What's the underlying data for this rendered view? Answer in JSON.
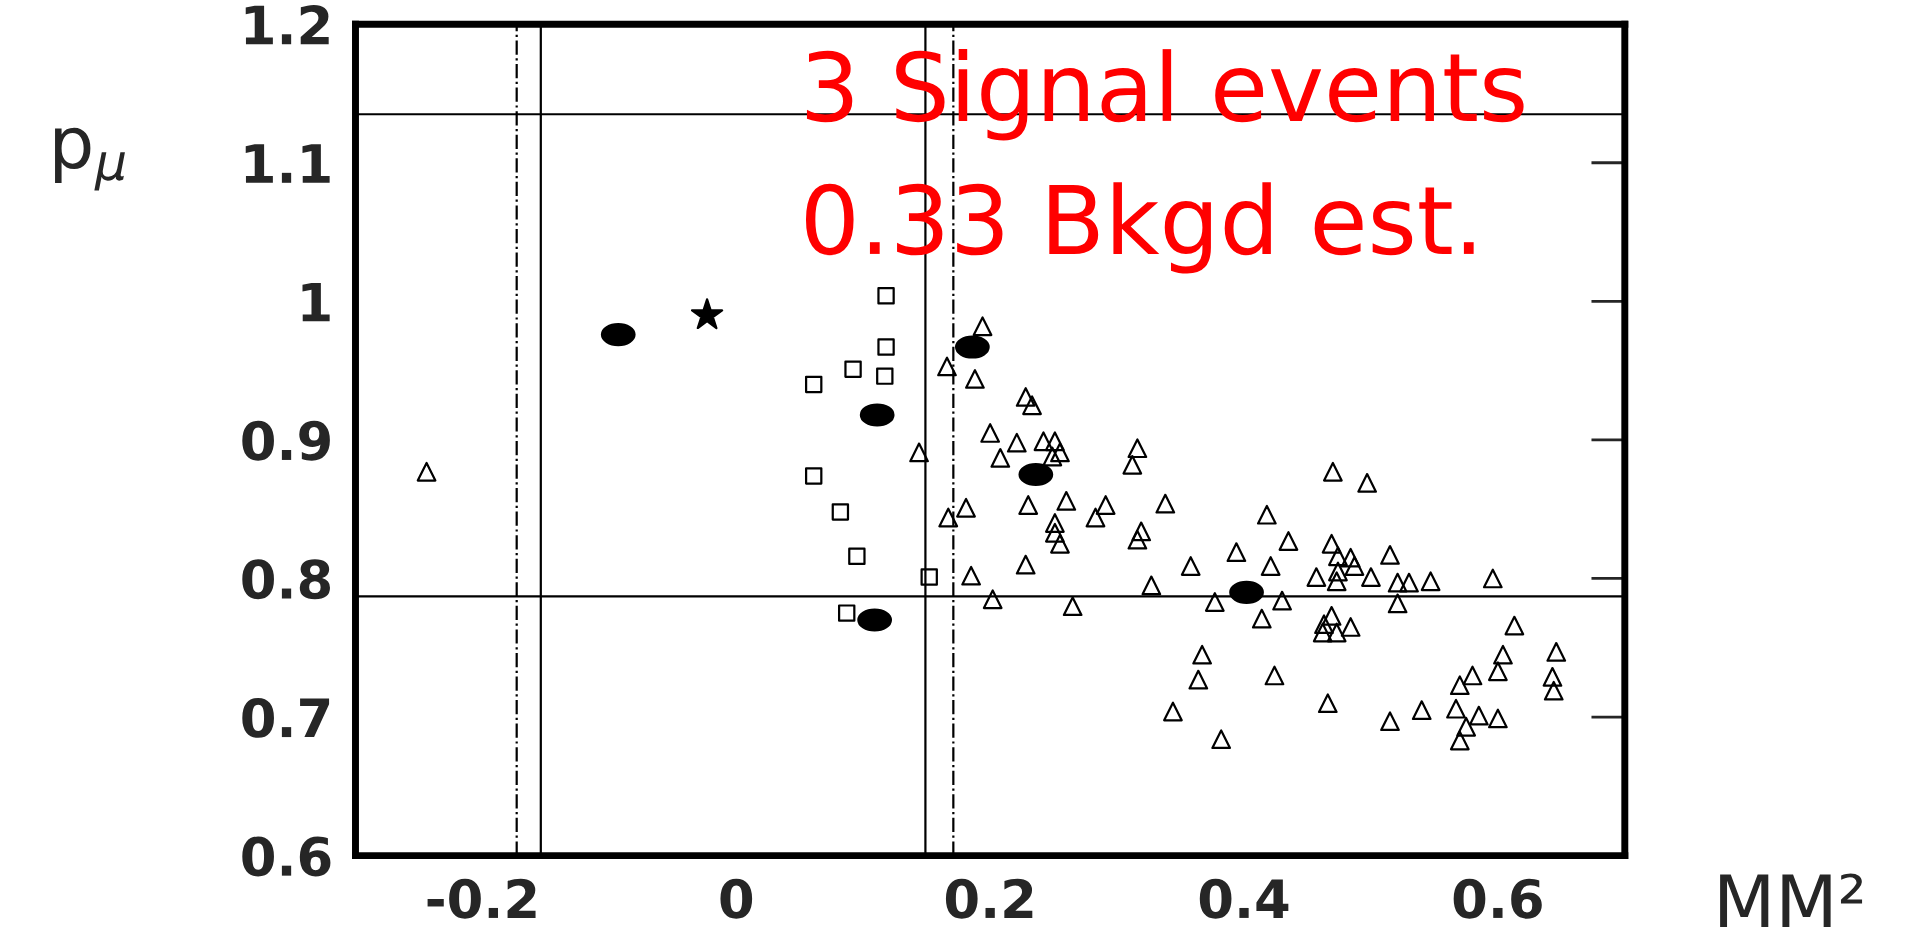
{
  "chart_data": {
    "type": "scatter",
    "xlabel": "MM²",
    "ylabel": "p$_{μ}$",
    "xlim": [
      -0.3,
      0.7
    ],
    "ylim": [
      0.6,
      1.2
    ],
    "xticks": [
      -0.2,
      0,
      0.2,
      0.4,
      0.6
    ],
    "yticks": [
      0.6,
      0.7,
      0.8,
      0.9,
      1,
      1.1,
      1.2
    ],
    "grid": false,
    "legend": false,
    "annotations": [
      "3 Signal events",
      "0.33 Bkgd est."
    ],
    "ref_lines": [
      {
        "axis": "x",
        "value": -0.173,
        "line_style": "dashdot",
        "color": "#000000"
      },
      {
        "axis": "x",
        "value": -0.154,
        "line_style": "solid",
        "color": "#000000"
      },
      {
        "axis": "x",
        "value": 0.149,
        "line_style": "solid",
        "color": "#000000"
      },
      {
        "axis": "x",
        "value": 0.171,
        "line_style": "dashdot",
        "color": "#000000"
      },
      {
        "axis": "y",
        "value": 1.135,
        "line_style": "solid",
        "color": "#000000"
      },
      {
        "axis": "y",
        "value": 0.787,
        "line_style": "solid",
        "color": "#000000"
      }
    ],
    "series": [
      {
        "marker": "triangle",
        "color": "#000000",
        "x": [
          -0.244,
          0.194,
          0.166,
          0.188,
          0.228,
          0.233,
          0.2,
          0.251,
          0.242,
          0.221,
          0.255,
          0.208,
          0.249,
          0.144,
          0.316,
          0.312,
          0.47,
          0.497,
          0.338,
          0.23,
          0.26,
          0.291,
          0.283,
          0.251,
          0.181,
          0.167,
          0.255,
          0.251,
          0.319,
          0.316,
          0.228,
          0.185,
          0.202,
          0.265,
          0.327,
          0.358,
          0.394,
          0.418,
          0.435,
          0.421,
          0.457,
          0.469,
          0.474,
          0.474,
          0.473,
          0.484,
          0.487,
          0.5,
          0.515,
          0.521,
          0.53,
          0.547,
          0.596,
          0.521,
          0.43,
          0.414,
          0.469,
          0.463,
          0.473,
          0.462,
          0.484,
          0.377,
          0.613,
          0.367,
          0.424,
          0.364,
          0.344,
          0.382,
          0.466,
          0.515,
          0.54,
          0.57,
          0.58,
          0.604,
          0.6,
          0.646,
          0.643,
          0.644,
          0.567,
          0.575,
          0.57,
          0.585,
          0.6
        ],
        "values": [
          0.877,
          0.982,
          0.953,
          0.944,
          0.931,
          0.925,
          0.905,
          0.899,
          0.899,
          0.898,
          0.891,
          0.887,
          0.888,
          0.891,
          0.894,
          0.882,
          0.877,
          0.869,
          0.854,
          0.853,
          0.856,
          0.853,
          0.844,
          0.84,
          0.851,
          0.844,
          0.825,
          0.833,
          0.834,
          0.828,
          0.81,
          0.802,
          0.785,
          0.78,
          0.795,
          0.809,
          0.819,
          0.846,
          0.827,
          0.809,
          0.801,
          0.825,
          0.816,
          0.805,
          0.798,
          0.815,
          0.809,
          0.801,
          0.817,
          0.797,
          0.797,
          0.798,
          0.8,
          0.782,
          0.784,
          0.771,
          0.773,
          0.767,
          0.761,
          0.761,
          0.765,
          0.783,
          0.766,
          0.745,
          0.73,
          0.727,
          0.704,
          0.684,
          0.71,
          0.697,
          0.705,
          0.723,
          0.73,
          0.745,
          0.733,
          0.747,
          0.729,
          0.719,
          0.706,
          0.693,
          0.683,
          0.701,
          0.699
        ]
      },
      {
        "marker": "square",
        "color": "#000000",
        "x": [
          0.118,
          0.118,
          0.092,
          0.117,
          0.061,
          0.061,
          0.082,
          0.095,
          0.152,
          0.087
        ],
        "values": [
          1.004,
          0.967,
          0.951,
          0.946,
          0.94,
          0.874,
          0.848,
          0.816,
          0.801,
          0.775
        ]
      },
      {
        "marker": "circle",
        "color": "#000000",
        "x": [
          -0.093,
          0.186,
          0.111,
          0.236,
          0.402,
          0.109
        ],
        "values": [
          0.976,
          0.967,
          0.918,
          0.875,
          0.79,
          0.77
        ]
      },
      {
        "marker": "star",
        "color": "#000000",
        "x": [
          -0.023
        ],
        "values": [
          0.99
        ]
      }
    ]
  }
}
